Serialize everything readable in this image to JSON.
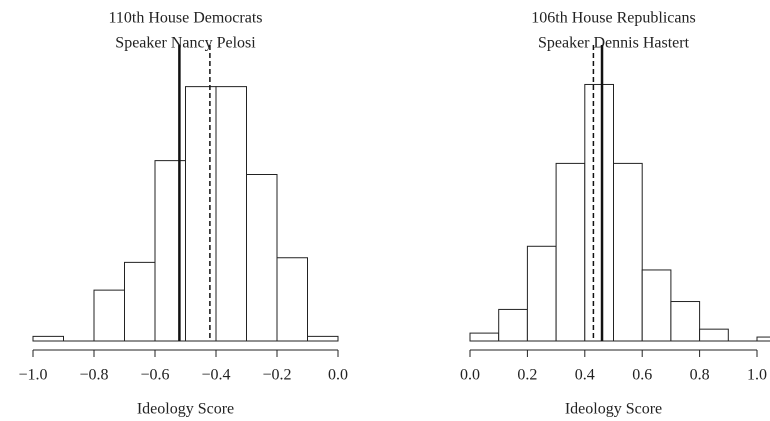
{
  "chart_data": [
    {
      "type": "histogram",
      "title": "110th House Democrats",
      "subtitle": "Speaker Nancy Pelosi",
      "x_label": "Ideology Score",
      "bins": [
        -1.0,
        -0.9,
        -0.8,
        -0.7,
        -0.6,
        -0.5,
        -0.4,
        -0.3,
        -0.2,
        -0.1,
        0.0
      ],
      "values": [
        1,
        0,
        11,
        17,
        39,
        55,
        55,
        36,
        18,
        1
      ],
      "color": "#ffffff",
      "xlim": [
        -1.0,
        0.0
      ],
      "ylim": [
        0,
        64
      ],
      "xticks": [
        {
          "value": -1.0,
          "label": "−1.0"
        },
        {
          "value": -0.8,
          "label": "−0.8"
        },
        {
          "value": -0.6,
          "label": "−0.6"
        },
        {
          "value": -0.4,
          "label": "−0.4"
        },
        {
          "value": -0.2,
          "label": "−0.2"
        },
        {
          "value": 0.0,
          "label": "0.0"
        }
      ],
      "lines": [
        {
          "value": -0.52,
          "style": "solid"
        },
        {
          "value": -0.42,
          "style": "dashed"
        }
      ]
    },
    {
      "type": "histogram",
      "title": "106th House Republicans",
      "subtitle": "Speaker Dennis Hastert",
      "x_label": "Ideology Score",
      "bins": [
        0.0,
        0.1,
        0.2,
        0.3,
        0.4,
        0.5,
        0.6,
        0.7,
        0.8,
        0.9,
        1.0,
        1.1
      ],
      "values": [
        2,
        8,
        24,
        45,
        65,
        45,
        18,
        10,
        3,
        0,
        1
      ],
      "color": "#ffffff",
      "xlim": [
        0.0,
        1.1
      ],
      "ylim": [
        0,
        75
      ],
      "xticks": [
        {
          "value": 0.0,
          "label": "0.0"
        },
        {
          "value": 0.2,
          "label": "0.2"
        },
        {
          "value": 0.4,
          "label": "0.4"
        },
        {
          "value": 0.6,
          "label": "0.6"
        },
        {
          "value": 0.8,
          "label": "0.8"
        },
        {
          "value": 1.0,
          "label": "1.0"
        }
      ],
      "lines": [
        {
          "value": 0.46,
          "style": "solid"
        },
        {
          "value": 0.43,
          "style": "dashed"
        }
      ]
    }
  ]
}
